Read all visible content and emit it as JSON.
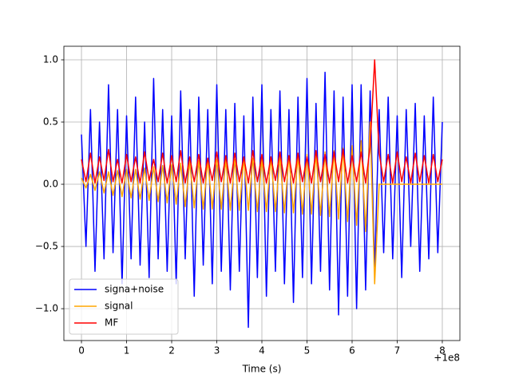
{
  "chart_data": {
    "type": "line",
    "xlabel": "Time (s)",
    "x_offset_label": "+1e8",
    "x": [
      0,
      0.1,
      0.2,
      0.3,
      0.4,
      0.5,
      0.6,
      0.7,
      0.8,
      0.9,
      1,
      1.1,
      1.2,
      1.3,
      1.4,
      1.5,
      1.6,
      1.7,
      1.8,
      1.9,
      2,
      2.1,
      2.2,
      2.3,
      2.4,
      2.5,
      2.6,
      2.7,
      2.8,
      2.9,
      3,
      3.1,
      3.2,
      3.3,
      3.4,
      3.5,
      3.6,
      3.7,
      3.8,
      3.9,
      4,
      4.1,
      4.2,
      4.3,
      4.4,
      4.5,
      4.6,
      4.7,
      4.8,
      4.9,
      5,
      5.1,
      5.2,
      5.3,
      5.4,
      5.5,
      5.6,
      5.7,
      5.8,
      5.9,
      6,
      6.1,
      6.2,
      6.3,
      6.4,
      6.5,
      6.6,
      6.7,
      6.8,
      6.9,
      7,
      7.1,
      7.2,
      7.3,
      7.4,
      7.5,
      7.6,
      7.7,
      7.8,
      7.9,
      8
    ],
    "series": [
      {
        "name": "signa+noise",
        "color": "#0000ff",
        "values": [
          0.4,
          -0.5,
          0.6,
          -0.7,
          0.5,
          -0.6,
          0.8,
          -0.55,
          0.6,
          -0.8,
          0.55,
          -0.6,
          0.7,
          -0.65,
          0.5,
          -0.75,
          0.85,
          -0.6,
          0.6,
          -0.7,
          0.55,
          -0.8,
          0.75,
          -0.6,
          0.6,
          -0.9,
          0.7,
          -0.65,
          0.6,
          -0.8,
          0.8,
          -0.7,
          0.6,
          -0.85,
          0.65,
          -0.7,
          0.55,
          -1.15,
          0.7,
          -0.75,
          0.8,
          -0.9,
          0.6,
          -0.7,
          0.75,
          -0.8,
          0.6,
          -0.95,
          0.7,
          -0.75,
          0.85,
          -0.8,
          0.65,
          -0.7,
          0.9,
          -0.85,
          0.75,
          -1.05,
          0.7,
          -0.9,
          0.8,
          -1.0,
          0.8,
          -0.85,
          0.75,
          -0.7,
          0.6,
          -0.55,
          0.7,
          -0.6,
          0.55,
          -0.75,
          0.6,
          -0.5,
          0.65,
          -0.7,
          0.55,
          -0.6,
          0.7,
          -0.55,
          0.5
        ]
      },
      {
        "name": "signal",
        "color": "#ffa500",
        "values": [
          0.05,
          -0.03,
          0.08,
          -0.05,
          0.1,
          -0.07,
          0.1,
          -0.09,
          0.11,
          -0.1,
          0.12,
          -0.11,
          0.12,
          -0.12,
          0.13,
          -0.13,
          0.14,
          -0.14,
          0.15,
          -0.15,
          0.16,
          -0.16,
          0.17,
          -0.18,
          0.18,
          -0.19,
          0.19,
          -0.2,
          0.19,
          -0.2,
          0.2,
          -0.2,
          0.2,
          -0.21,
          0.2,
          -0.21,
          0.21,
          -0.21,
          0.21,
          -0.22,
          0.21,
          -0.22,
          0.22,
          -0.22,
          0.22,
          -0.23,
          0.23,
          -0.23,
          0.23,
          -0.24,
          0.24,
          -0.24,
          0.25,
          -0.25,
          0.26,
          -0.26,
          0.27,
          -0.28,
          0.29,
          -0.3,
          0.31,
          -0.33,
          0.35,
          -0.38,
          0.5,
          -0.8,
          0,
          0,
          0,
          0,
          0,
          0,
          0,
          0,
          0,
          0,
          0,
          0,
          0,
          0,
          0
        ]
      },
      {
        "name": "MF",
        "color": "#ff0000",
        "values": [
          0.2,
          0.02,
          0.25,
          0.01,
          0.22,
          0.03,
          0.28,
          0.02,
          0.2,
          0.01,
          0.24,
          0.02,
          0.22,
          0.01,
          0.26,
          0.03,
          0.2,
          0.02,
          0.25,
          0.01,
          0.23,
          0.02,
          0.27,
          0.01,
          0.22,
          0.02,
          0.24,
          0.01,
          0.21,
          0.03,
          0.26,
          0.02,
          0.23,
          0.01,
          0.25,
          0.02,
          0.22,
          0.01,
          0.27,
          0.02,
          0.24,
          0.01,
          0.22,
          0.03,
          0.26,
          0.02,
          0.23,
          0.01,
          0.25,
          0.02,
          0.22,
          0.01,
          0.27,
          0.02,
          0.24,
          0.01,
          0.26,
          0.02,
          0.28,
          0.01,
          0.23,
          0.02,
          0.26,
          0.01,
          0.3,
          1.0,
          0.25,
          0.02,
          0.24,
          0.01,
          0.26,
          0.02,
          0.22,
          0.01,
          0.25,
          0.02,
          0.23,
          0.01,
          0.24,
          0.02,
          0.2
        ]
      }
    ],
    "xlim": [
      -0.39,
      8.39
    ],
    "ylim": [
      -1.256,
      1.109
    ],
    "xticks": [
      0,
      1,
      2,
      3,
      4,
      5,
      6,
      7,
      8
    ],
    "yticks": [
      {
        "value": -1.0,
        "label": "−1.0"
      },
      {
        "value": -0.5,
        "label": "−0.5"
      },
      {
        "value": 0.0,
        "label": "0.0"
      },
      {
        "value": 0.5,
        "label": "0.5"
      },
      {
        "value": 1.0,
        "label": "1.0"
      }
    ],
    "grid": true,
    "legend": "lower left"
  }
}
